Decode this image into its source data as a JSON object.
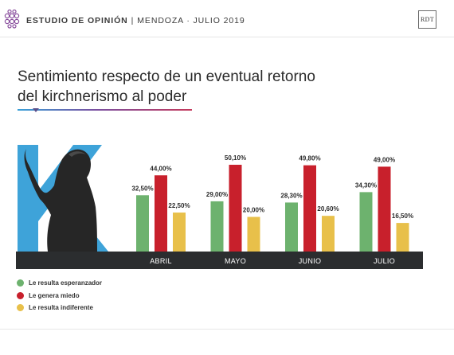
{
  "header": {
    "study": "ESTUDIO DE OPINIÓN",
    "separator": "|",
    "place_date": "MENDOZA · JULIO 2019",
    "brand": "RDT"
  },
  "chart_data": {
    "type": "bar",
    "title": "Sentimiento respecto de un eventual retorno del kirchnerismo al poder",
    "title_lines": [
      "Sentimiento respecto de un eventual retorno",
      "del kirchnerismo al poder"
    ],
    "categories": [
      "ABRIL",
      "MAYO",
      "JUNIO",
      "JULIO"
    ],
    "series": [
      {
        "name": "Le resulta esperanzador",
        "color": "#6db26e",
        "values": [
          32.5,
          29.0,
          28.3,
          34.3
        ],
        "labels": [
          "32,50%",
          "29,00%",
          "28,30%",
          "34,30%"
        ]
      },
      {
        "name": "Le genera miedo",
        "color": "#c8202c",
        "values": [
          44.0,
          50.1,
          49.8,
          49.0
        ],
        "labels": [
          "44,00%",
          "50,10%",
          "49,80%",
          "49,00%"
        ]
      },
      {
        "name": "Le resulta indiferente",
        "color": "#e8c04a",
        "values": [
          22.5,
          20.0,
          20.6,
          16.5
        ],
        "labels": [
          "22,50%",
          "20,00%",
          "20,60%",
          "16,50%"
        ]
      }
    ],
    "ylim": [
      0,
      55
    ],
    "grid": false,
    "legend_position": "bottom-left"
  },
  "colors": {
    "axis_band": "#2b2d2f",
    "k_shape": "#3ea3d9",
    "figure": "#262626",
    "text": "#2b2b2b"
  }
}
